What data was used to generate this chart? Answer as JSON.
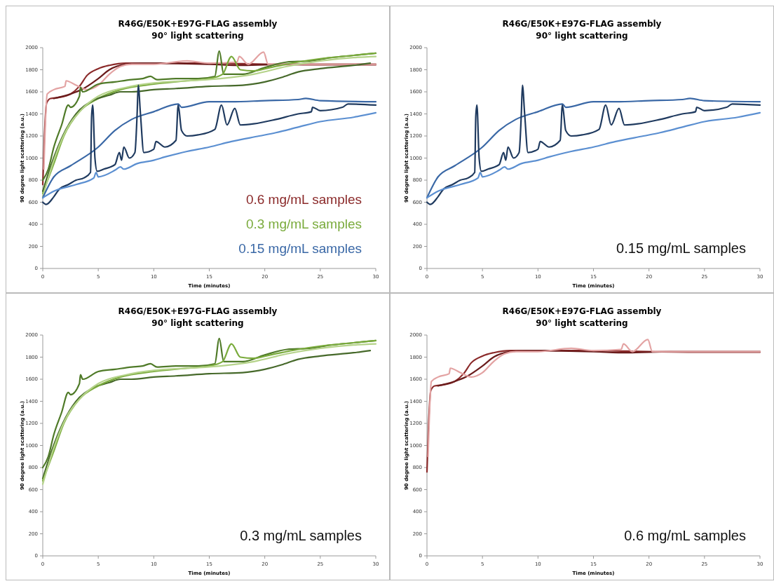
{
  "chart_data": [
    {
      "type": "line",
      "title": "R46G/E50K+E97G-FLAG assembly",
      "subtitle": "90° light scattering",
      "xlabel": "Time (minutes)",
      "ylabel": "90 degree light scattering (a.u.)",
      "xlim": [
        0,
        30
      ],
      "xticks": [
        0,
        5,
        10,
        15,
        20,
        25,
        30
      ],
      "ylim": [
        0,
        2000
      ],
      "yticks": [
        0,
        200,
        400,
        600,
        800,
        1000,
        1200,
        1400,
        1600,
        1800,
        2000
      ],
      "grid": false,
      "marker": "none",
      "annotations": [
        "0.6 mg/mL samples",
        "0.3 mg/mL samples",
        "0.15 mg/mL samples"
      ],
      "series": [
        {
          "color": "#8b2a2a",
          "x": [
            0,
            0.15,
            0.35,
            0.7,
            1.5,
            2.5,
            3.3,
            4,
            5,
            6,
            7.5,
            10,
            15,
            20,
            25,
            30
          ],
          "values": [
            760,
            1200,
            1500,
            1540,
            1550,
            1580,
            1650,
            1750,
            1810,
            1840,
            1860,
            1860,
            1860,
            1850,
            1845,
            1845
          ]
        },
        {
          "color": "#6b1c1c",
          "x": [
            1,
            2.5,
            3.5,
            5,
            6,
            7.5,
            9,
            15,
            18,
            22,
            30
          ],
          "values": [
            1540,
            1580,
            1620,
            1720,
            1800,
            1850,
            1860,
            1850,
            1840,
            1850,
            1850
          ]
        },
        {
          "color": "#e3a3a3",
          "x": [
            0.1,
            0.4,
            1,
            2,
            2.1,
            3,
            4,
            5,
            6,
            7,
            8,
            10,
            13,
            15,
            17.5,
            17.7,
            18.5,
            19.9,
            20.3,
            25,
            30
          ],
          "values": [
            900,
            1580,
            1620,
            1650,
            1700,
            1660,
            1620,
            1660,
            1760,
            1830,
            1850,
            1850,
            1880,
            1860,
            1870,
            1920,
            1850,
            1960,
            1850,
            1850,
            1850
          ]
        },
        {
          "color": "#4f7a28",
          "x": [
            0,
            0.5,
            1,
            1.7,
            2.3,
            2.5,
            3.3,
            3.4,
            3.6,
            5,
            6.5,
            8,
            9,
            9.7,
            10.3,
            12,
            14,
            15.5,
            15.9,
            16.3,
            18,
            20,
            22,
            24,
            26,
            28,
            30
          ],
          "values": [
            800,
            900,
            1100,
            1300,
            1480,
            1460,
            1560,
            1640,
            1600,
            1670,
            1690,
            1710,
            1720,
            1740,
            1710,
            1720,
            1720,
            1740,
            1970,
            1760,
            1760,
            1820,
            1870,
            1880,
            1910,
            1930,
            1950
          ]
        },
        {
          "color": "#7aab3c",
          "x": [
            0,
            1,
            1.9,
            3.3,
            5,
            7,
            10,
            13,
            15,
            16.2,
            17,
            17.8,
            19,
            20.5,
            23,
            25,
            28,
            30
          ],
          "values": [
            680,
            950,
            1200,
            1420,
            1540,
            1620,
            1670,
            1700,
            1720,
            1760,
            1920,
            1800,
            1790,
            1820,
            1870,
            1900,
            1930,
            1950
          ]
        },
        {
          "color": "#46692a",
          "x": [
            0,
            0.8,
            1.8,
            3,
            4.5,
            6,
            7,
            8,
            10,
            12,
            15,
            18,
            20,
            21.5,
            23,
            25,
            28,
            29.5
          ],
          "values": [
            700,
            950,
            1200,
            1400,
            1520,
            1570,
            1600,
            1600,
            1620,
            1630,
            1650,
            1660,
            1690,
            1730,
            1780,
            1810,
            1840,
            1860
          ]
        },
        {
          "color": "#b5d38a",
          "x": [
            0,
            1,
            2,
            3.5,
            5,
            7.5,
            10,
            13,
            16,
            19,
            22,
            25,
            28,
            30
          ],
          "values": [
            650,
            980,
            1230,
            1440,
            1560,
            1640,
            1680,
            1700,
            1720,
            1760,
            1830,
            1880,
            1910,
            1920
          ]
        },
        {
          "color": "#3a68a6",
          "x": [
            0,
            1,
            2.5,
            5,
            6.5,
            8,
            10,
            12.2,
            12.5,
            15,
            17,
            20,
            23,
            23.7,
            25,
            30
          ],
          "values": [
            640,
            830,
            930,
            1100,
            1250,
            1350,
            1420,
            1490,
            1460,
            1510,
            1510,
            1520,
            1530,
            1540,
            1520,
            1510
          ]
        },
        {
          "color": "#1f3a5f",
          "x": [
            0,
            0.3,
            1,
            1.5,
            2.3,
            3,
            3.7,
            4.3,
            4.4,
            4.5,
            4.7,
            4.9,
            5.5,
            6.5,
            6.9,
            7.1,
            7.3,
            7.8,
            8.3,
            8.5,
            8.6,
            8.8,
            9.1,
            10,
            10.2,
            11,
            12,
            12.2,
            12.5,
            13,
            14,
            15.5,
            16.1,
            16.6,
            17.3,
            17.8,
            19,
            21,
            23,
            24.2,
            24.3,
            25,
            27,
            27.5,
            30
          ],
          "values": [
            600,
            580,
            650,
            720,
            760,
            800,
            820,
            870,
            1380,
            1480,
            1000,
            880,
            900,
            940,
            1050,
            980,
            1100,
            1000,
            1050,
            1400,
            1660,
            1400,
            1050,
            1080,
            1150,
            1100,
            1160,
            1480,
            1250,
            1200,
            1210,
            1260,
            1480,
            1300,
            1450,
            1300,
            1310,
            1350,
            1400,
            1420,
            1460,
            1430,
            1460,
            1490,
            1480
          ]
        },
        {
          "color": "#5b8fd1",
          "x": [
            0,
            1,
            3,
            4.6,
            4.8,
            5,
            6.5,
            7,
            7.3,
            8.5,
            10,
            11,
            13,
            15,
            17,
            19.5,
            21,
            23,
            25,
            28,
            30
          ],
          "values": [
            640,
            700,
            760,
            820,
            870,
            830,
            890,
            920,
            900,
            950,
            980,
            1010,
            1060,
            1100,
            1150,
            1200,
            1230,
            1280,
            1330,
            1370,
            1410
          ]
        }
      ]
    },
    {
      "type": "line",
      "title": "R46G/E50K+E97G-FLAG assembly",
      "subtitle": "90° light scattering",
      "xlabel": "Time (minutes)",
      "ylabel": "90 degree light scattering (a.u.)",
      "xlim": [
        0,
        30
      ],
      "xticks": [
        0,
        5,
        10,
        15,
        20,
        25,
        30
      ],
      "ylim": [
        0,
        2000
      ],
      "yticks": [
        0,
        200,
        400,
        600,
        800,
        1000,
        1200,
        1400,
        1600,
        1800,
        2000
      ],
      "grid": false,
      "marker": "none",
      "annotations": [
        "0.15 mg/mL samples"
      ],
      "series": [
        {
          "color": "#3a68a6",
          "x": [
            0,
            1,
            2.5,
            5,
            6.5,
            8,
            10,
            12.2,
            12.5,
            15,
            17,
            20,
            23,
            23.7,
            25,
            30
          ],
          "values": [
            640,
            830,
            930,
            1100,
            1250,
            1350,
            1420,
            1490,
            1460,
            1510,
            1510,
            1520,
            1530,
            1540,
            1520,
            1510
          ]
        },
        {
          "color": "#1f3a5f",
          "x": [
            0,
            0.3,
            1,
            1.5,
            2.3,
            3,
            3.7,
            4.3,
            4.4,
            4.5,
            4.7,
            4.9,
            5.5,
            6.5,
            6.9,
            7.1,
            7.3,
            7.8,
            8.3,
            8.5,
            8.6,
            8.8,
            9.1,
            10,
            10.2,
            11,
            12,
            12.2,
            12.5,
            13,
            14,
            15.5,
            16.1,
            16.6,
            17.3,
            17.8,
            19,
            21,
            23,
            24.2,
            24.3,
            25,
            27,
            27.5,
            30
          ],
          "values": [
            600,
            580,
            650,
            720,
            760,
            800,
            820,
            870,
            1380,
            1480,
            1000,
            880,
            900,
            940,
            1050,
            980,
            1100,
            1000,
            1050,
            1400,
            1660,
            1400,
            1050,
            1080,
            1150,
            1100,
            1160,
            1480,
            1250,
            1200,
            1210,
            1260,
            1480,
            1300,
            1450,
            1300,
            1310,
            1350,
            1400,
            1420,
            1460,
            1430,
            1460,
            1490,
            1480
          ]
        },
        {
          "color": "#5b8fd1",
          "x": [
            0,
            1,
            3,
            4.6,
            4.8,
            5,
            6.5,
            7,
            7.3,
            8.5,
            10,
            11,
            13,
            15,
            17,
            19.5,
            21,
            23,
            25,
            28,
            30
          ],
          "values": [
            640,
            700,
            760,
            820,
            870,
            830,
            890,
            920,
            900,
            950,
            980,
            1010,
            1060,
            1100,
            1150,
            1200,
            1230,
            1280,
            1330,
            1370,
            1410
          ]
        }
      ]
    },
    {
      "type": "line",
      "title": "R46G/E50K+E97G-FLAG assembly",
      "subtitle": "90° light scattering",
      "xlabel": "Time (minutes)",
      "ylabel": "90 degree light scattering (a.u.)",
      "xlim": [
        0,
        30
      ],
      "xticks": [
        0,
        5,
        10,
        15,
        20,
        25,
        30
      ],
      "ylim": [
        0,
        2000
      ],
      "yticks": [
        0,
        200,
        400,
        600,
        800,
        1000,
        1200,
        1400,
        1600,
        1800,
        2000
      ],
      "grid": false,
      "marker": "none",
      "annotations": [
        "0.3 mg/mL samples"
      ],
      "series": [
        {
          "color": "#4f7a28",
          "x": [
            0,
            0.5,
            1,
            1.7,
            2.3,
            2.5,
            3.3,
            3.4,
            3.6,
            5,
            6.5,
            8,
            9,
            9.7,
            10.3,
            12,
            14,
            15.5,
            15.9,
            16.3,
            18,
            20,
            22,
            24,
            26,
            28,
            30
          ],
          "values": [
            800,
            900,
            1100,
            1300,
            1480,
            1460,
            1560,
            1640,
            1600,
            1670,
            1690,
            1710,
            1720,
            1740,
            1710,
            1720,
            1720,
            1740,
            1970,
            1760,
            1760,
            1820,
            1870,
            1880,
            1910,
            1930,
            1950
          ]
        },
        {
          "color": "#46692a",
          "x": [
            0,
            0.8,
            1.8,
            3,
            4.5,
            6,
            7,
            8,
            10,
            12,
            15,
            18,
            20,
            21.5,
            23,
            25,
            28,
            29.5
          ],
          "values": [
            700,
            950,
            1200,
            1400,
            1520,
            1570,
            1600,
            1600,
            1620,
            1630,
            1650,
            1660,
            1690,
            1730,
            1780,
            1810,
            1840,
            1860
          ]
        },
        {
          "color": "#7aab3c",
          "x": [
            0,
            1,
            1.9,
            3.3,
            5,
            7,
            10,
            13,
            15,
            16.2,
            17,
            17.8,
            19,
            20.5,
            23,
            25,
            28,
            30
          ],
          "values": [
            680,
            950,
            1200,
            1420,
            1540,
            1620,
            1670,
            1700,
            1720,
            1760,
            1920,
            1800,
            1790,
            1820,
            1870,
            1900,
            1930,
            1950
          ]
        },
        {
          "color": "#b5d38a",
          "x": [
            0,
            1,
            2,
            3.5,
            5,
            7.5,
            10,
            13,
            16,
            19,
            22,
            25,
            28,
            30
          ],
          "values": [
            650,
            980,
            1230,
            1440,
            1560,
            1640,
            1680,
            1700,
            1720,
            1760,
            1830,
            1880,
            1910,
            1920
          ]
        }
      ]
    },
    {
      "type": "line",
      "title": "R46G/E50K+E97G-FLAG assembly",
      "subtitle": "90° light scattering",
      "xlabel": "Time (minutes)",
      "ylabel": "90 degree light scattering (a.u.)",
      "xlim": [
        0,
        30
      ],
      "xticks": [
        0,
        5,
        10,
        15,
        20,
        25,
        30
      ],
      "ylim": [
        0,
        2000
      ],
      "yticks": [
        0,
        200,
        400,
        600,
        800,
        1000,
        1200,
        1400,
        1600,
        1800,
        2000
      ],
      "grid": false,
      "marker": "none",
      "annotations": [
        "0.6 mg/mL samples"
      ],
      "series": [
        {
          "color": "#8b2a2a",
          "x": [
            0,
            0.15,
            0.35,
            0.7,
            1.5,
            2.5,
            3.3,
            4,
            5,
            6,
            7.5,
            10,
            15,
            20,
            25,
            30
          ],
          "values": [
            760,
            1200,
            1500,
            1540,
            1550,
            1580,
            1650,
            1750,
            1810,
            1840,
            1860,
            1860,
            1860,
            1850,
            1845,
            1845
          ]
        },
        {
          "color": "#6b1c1c",
          "x": [
            1,
            2.5,
            3.5,
            5,
            6,
            7.5,
            9,
            15,
            18,
            22,
            30
          ],
          "values": [
            1540,
            1580,
            1620,
            1720,
            1800,
            1850,
            1860,
            1850,
            1840,
            1850,
            1850
          ]
        },
        {
          "color": "#e3a3a3",
          "x": [
            0.1,
            0.4,
            1,
            2,
            2.1,
            3,
            4,
            5,
            6,
            7,
            8,
            10,
            13,
            15,
            17.5,
            17.7,
            18.5,
            19.9,
            20.3,
            25,
            30
          ],
          "values": [
            900,
            1580,
            1620,
            1650,
            1700,
            1660,
            1620,
            1660,
            1760,
            1830,
            1850,
            1850,
            1880,
            1860,
            1870,
            1920,
            1850,
            1960,
            1850,
            1850,
            1850
          ]
        }
      ]
    }
  ]
}
